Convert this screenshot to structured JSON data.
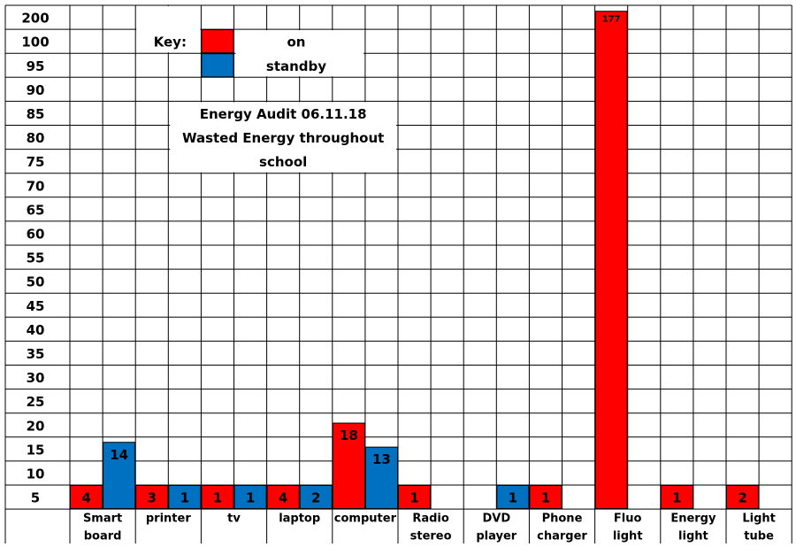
{
  "chart_data": {
    "type": "bar",
    "title": [
      "Energy Audit 06.11.18",
      "Wasted Energy throughout",
      "school"
    ],
    "y_tick_labels": [
      "200",
      "100",
      "95",
      "90",
      "85",
      "80",
      "75",
      "70",
      "65",
      "60",
      "55",
      "50",
      "45",
      "40",
      "35",
      "30",
      "25",
      "20",
      "15",
      "10",
      "5"
    ],
    "categories": [
      {
        "line1": "Smart",
        "line2": "board"
      },
      {
        "line1": "printer",
        "line2": ""
      },
      {
        "line1": "tv",
        "line2": ""
      },
      {
        "line1": "laptop",
        "line2": ""
      },
      {
        "line1": "computer",
        "line2": ""
      },
      {
        "line1": "Radio",
        "line2": "stereo"
      },
      {
        "line1": "DVD",
        "line2": "player"
      },
      {
        "line1": "Phone",
        "line2": "charger"
      },
      {
        "line1": "Fluo",
        "line2": "light"
      },
      {
        "line1": "Energy",
        "line2": "light"
      },
      {
        "line1": "Light",
        "line2": "tube"
      }
    ],
    "series": [
      {
        "name": "on",
        "color": "#ff0000",
        "values": [
          4,
          3,
          1,
          4,
          18,
          1,
          null,
          1,
          177,
          1,
          2
        ]
      },
      {
        "name": "standby",
        "color": "#0070c0",
        "values": [
          14,
          1,
          1,
          2,
          13,
          null,
          1,
          null,
          null,
          null,
          null
        ]
      }
    ],
    "key": {
      "label": "Key:"
    },
    "grid": true,
    "legend_position": "top-left"
  }
}
